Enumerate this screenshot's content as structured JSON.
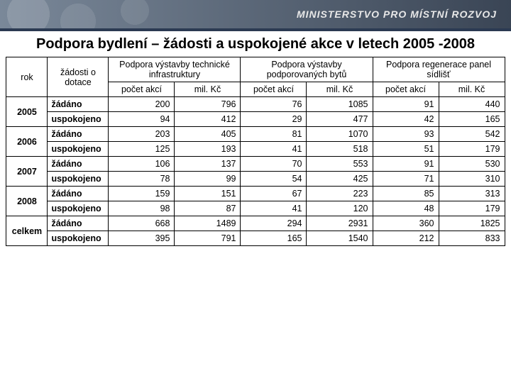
{
  "banner_text": "MINISTERSTVO PRO MÍSTNÍ ROZVOJ",
  "title": "Podpora bydlení – žádosti a uspokojené akce v letech 2005 -2008",
  "headers": {
    "rok": "rok",
    "zadosti": "žádosti o dotace",
    "group1": "Podpora výstavby technické infrastruktury",
    "group2": "Podpora výstavby podporovaných bytů",
    "group3": "Podpora regenerace panel sídlišť",
    "sub_pocet": "počet akcí",
    "sub_mil": "mil. Kč"
  },
  "row_labels": {
    "zadano": "žádáno",
    "uspokojeno": "uspokojeno",
    "celkem": "celkem"
  },
  "years": [
    "2005",
    "2006",
    "2007",
    "2008"
  ],
  "data": {
    "2005": {
      "zadano": [
        200,
        796,
        76,
        1085,
        91,
        440
      ],
      "uspokojeno": [
        94,
        412,
        29,
        477,
        42,
        165
      ]
    },
    "2006": {
      "zadano": [
        203,
        405,
        81,
        1070,
        93,
        542
      ],
      "uspokojeno": [
        125,
        193,
        41,
        518,
        51,
        179
      ]
    },
    "2007": {
      "zadano": [
        106,
        137,
        70,
        553,
        91,
        530
      ],
      "uspokojeno": [
        78,
        99,
        54,
        425,
        71,
        310
      ]
    },
    "2008": {
      "zadano": [
        159,
        151,
        67,
        223,
        85,
        313
      ],
      "uspokojeno": [
        98,
        87,
        41,
        120,
        48,
        179
      ]
    }
  },
  "totals": {
    "zadano": [
      668,
      1489,
      294,
      2931,
      360,
      1825
    ],
    "uspokojeno": [
      395,
      791,
      165,
      1540,
      212,
      833
    ]
  },
  "colors": {
    "border": "#000000",
    "banner_dark": "#3a4555",
    "underline": "#2b3a52"
  }
}
